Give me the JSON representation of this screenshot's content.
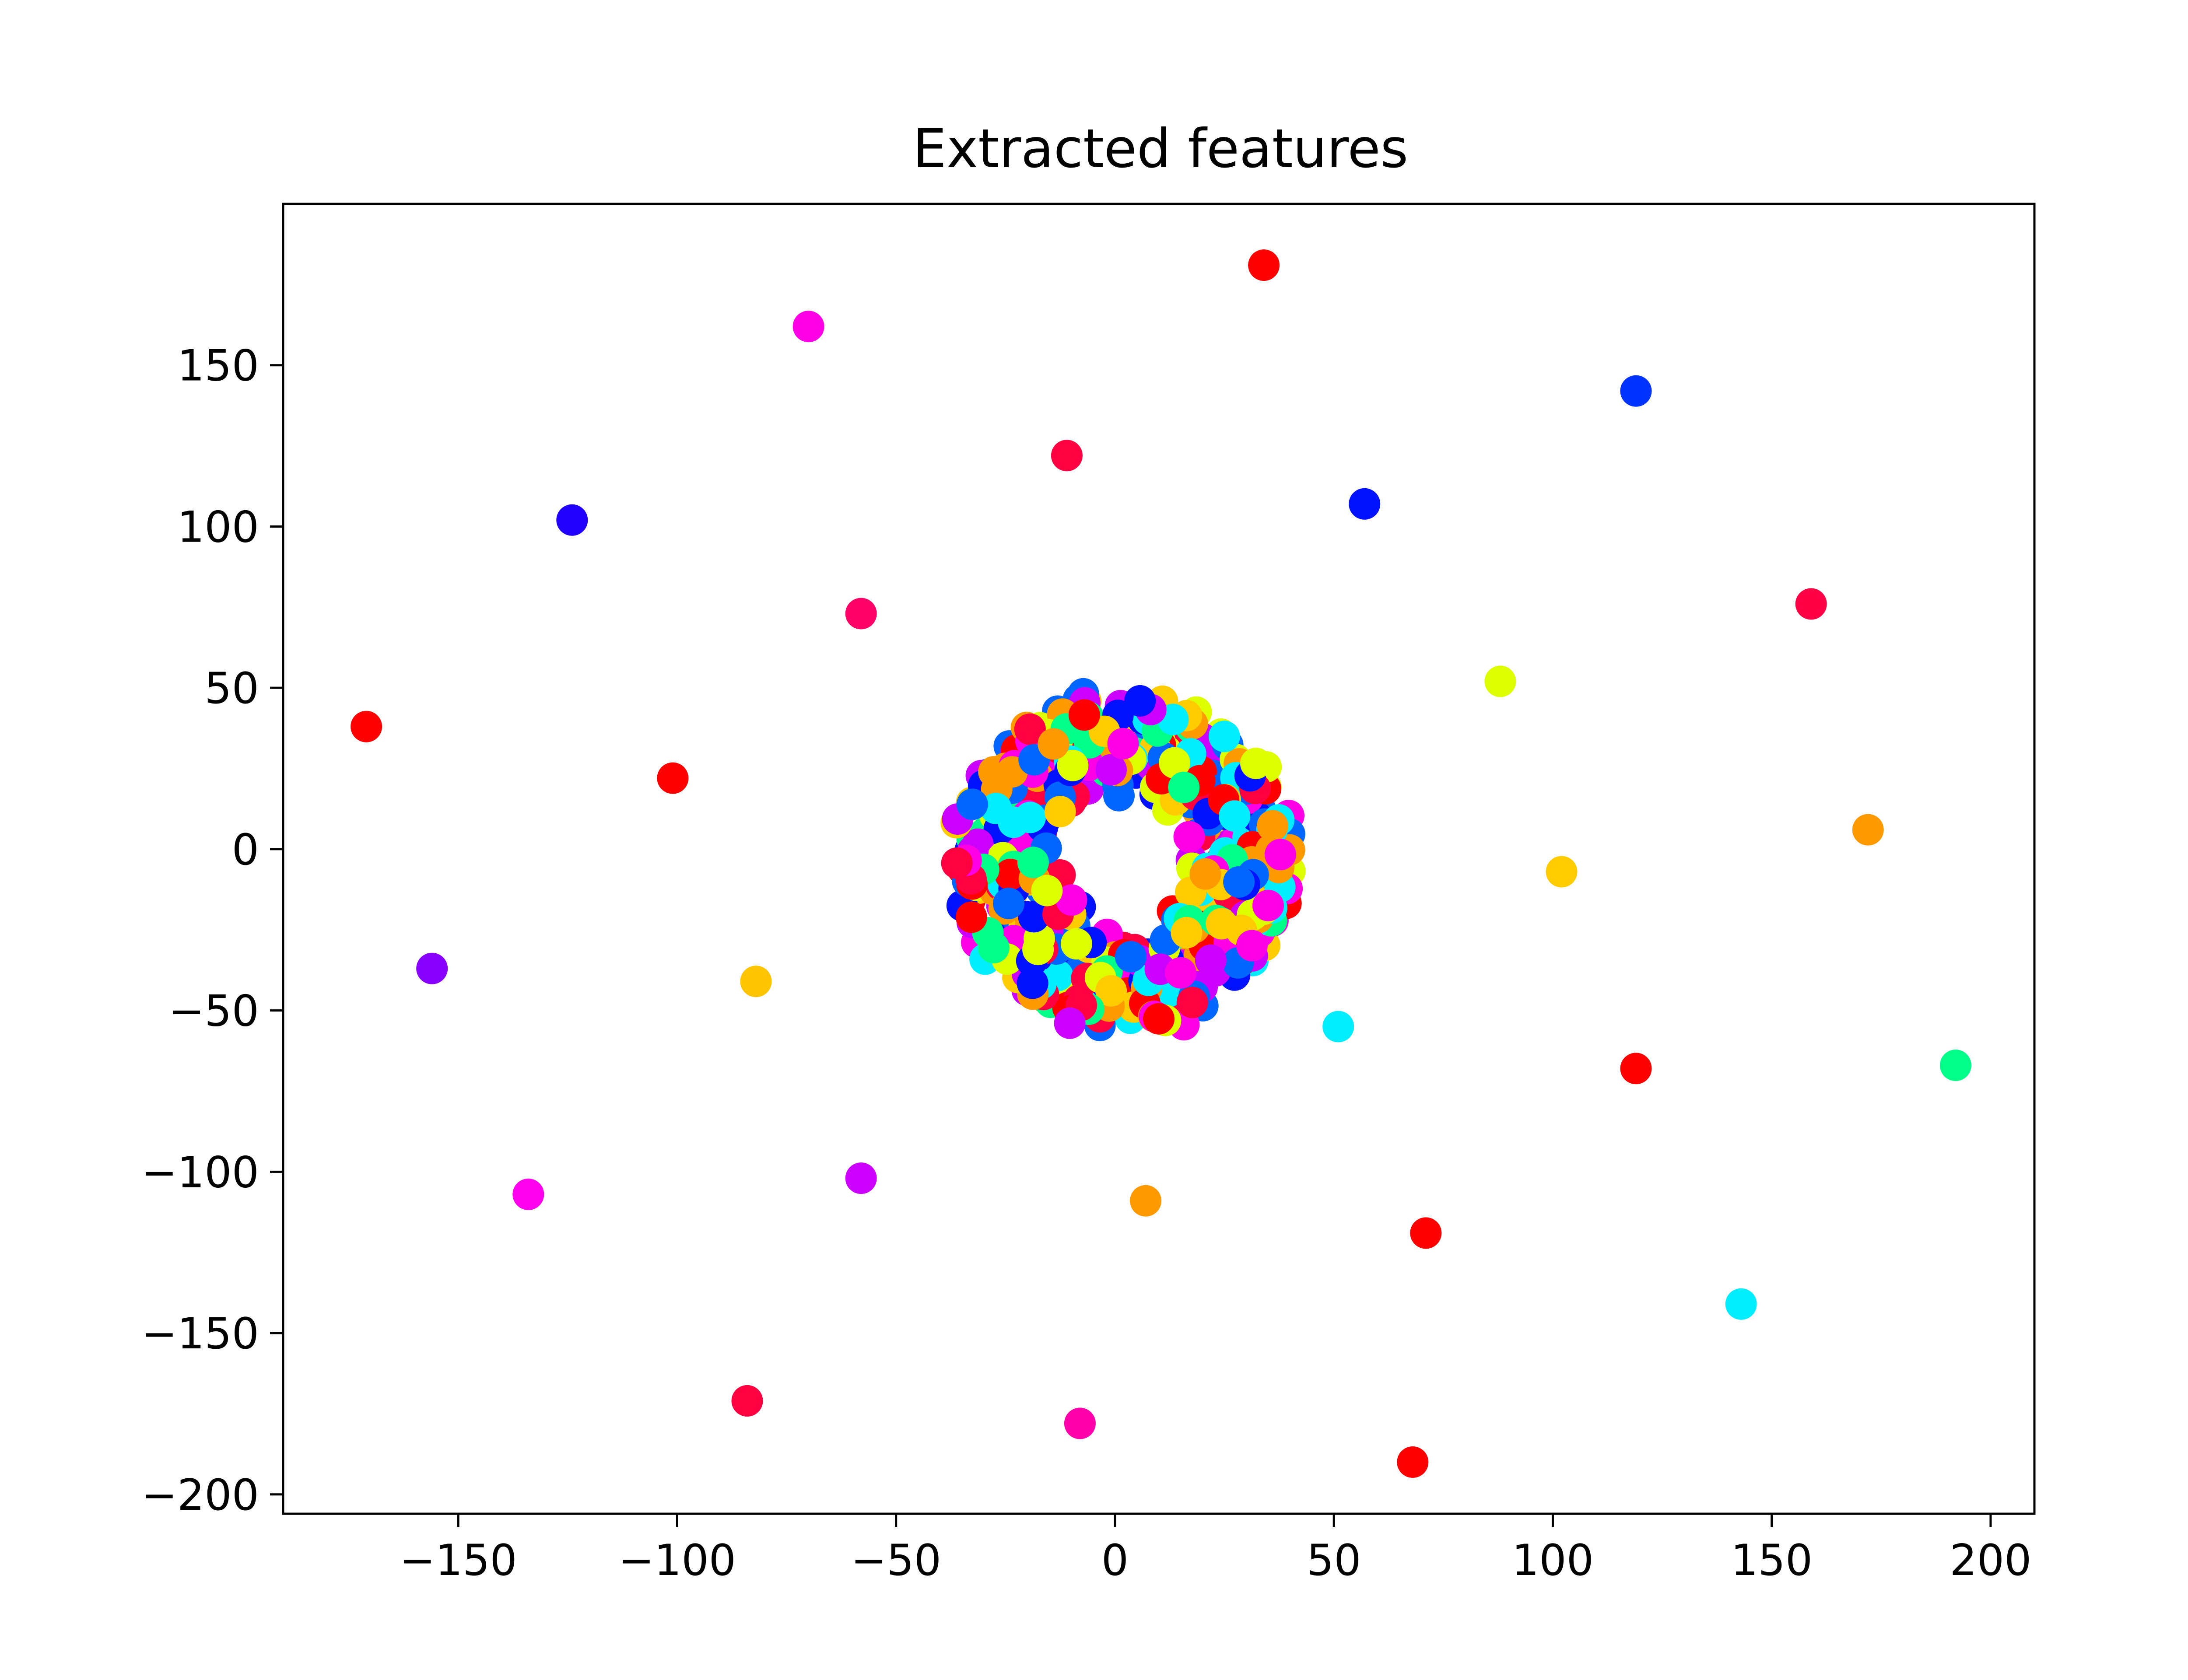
{
  "chart_data": {
    "type": "scatter",
    "title": "Extracted features",
    "xlabel": "",
    "ylabel": "",
    "xlim": [
      -190,
      210
    ],
    "ylim": [
      -206,
      200
    ],
    "xticks": [
      -150,
      -100,
      -50,
      0,
      50,
      100,
      150,
      200
    ],
    "yticks": [
      150,
      100,
      50,
      0,
      -50,
      -100,
      -150,
      -200
    ],
    "xtick_labels": [
      "−150",
      "−100",
      "−50",
      "0",
      "50",
      "100",
      "150",
      "200"
    ],
    "ytick_labels": [
      "150",
      "100",
      "50",
      "0",
      "−50",
      "−100",
      "−150",
      "−200"
    ],
    "grid": false,
    "legend": "none",
    "colormap": "hsv",
    "outliers": [
      {
        "x": 34,
        "y": 181,
        "color": "#ff0000"
      },
      {
        "x": -70,
        "y": 162,
        "color": "#ff00e6"
      },
      {
        "x": 119,
        "y": 142,
        "color": "#0033ff"
      },
      {
        "x": -11,
        "y": 122,
        "color": "#ff0040"
      },
      {
        "x": 57,
        "y": 107,
        "color": "#0011ff"
      },
      {
        "x": -124,
        "y": 102,
        "color": "#2200ff"
      },
      {
        "x": 159,
        "y": 76,
        "color": "#ff0044"
      },
      {
        "x": -58,
        "y": 73,
        "color": "#ff0066"
      },
      {
        "x": 88,
        "y": 52,
        "color": "#ddff00"
      },
      {
        "x": -171,
        "y": 38,
        "color": "#ff0000"
      },
      {
        "x": -101,
        "y": 22,
        "color": "#ff0000"
      },
      {
        "x": 172,
        "y": 6,
        "color": "#ff9900"
      },
      {
        "x": 102,
        "y": -7,
        "color": "#ffcc00"
      },
      {
        "x": -156,
        "y": -37,
        "color": "#8800ff"
      },
      {
        "x": -82,
        "y": -41,
        "color": "#ffc400"
      },
      {
        "x": 51,
        "y": -55,
        "color": "#00eeff"
      },
      {
        "x": 192,
        "y": -67,
        "color": "#00ff88"
      },
      {
        "x": 119,
        "y": -68,
        "color": "#ff0000"
      },
      {
        "x": -134,
        "y": -107,
        "color": "#ff00ee"
      },
      {
        "x": -58,
        "y": -102,
        "color": "#cc00ff"
      },
      {
        "x": 7,
        "y": -109,
        "color": "#ff9900"
      },
      {
        "x": 71,
        "y": -119,
        "color": "#ff0000"
      },
      {
        "x": 143,
        "y": -141,
        "color": "#00eeff"
      },
      {
        "x": -84,
        "y": -171,
        "color": "#ff0040"
      },
      {
        "x": -8,
        "y": -178,
        "color": "#ff00aa"
      },
      {
        "x": 68,
        "y": -190,
        "color": "#ff0000"
      }
    ],
    "cluster": {
      "center": [
        2,
        -4
      ],
      "x_range": [
        -38,
        43
      ],
      "y_range": [
        -52,
        58
      ],
      "colors": [
        "#ff0000",
        "#00eeff",
        "#ff00e6",
        "#cc00ff",
        "#0066ff",
        "#ffcc00",
        "#ff0040",
        "#ddff00",
        "#ff9900",
        "#0011ff",
        "#00ff88"
      ]
    }
  }
}
